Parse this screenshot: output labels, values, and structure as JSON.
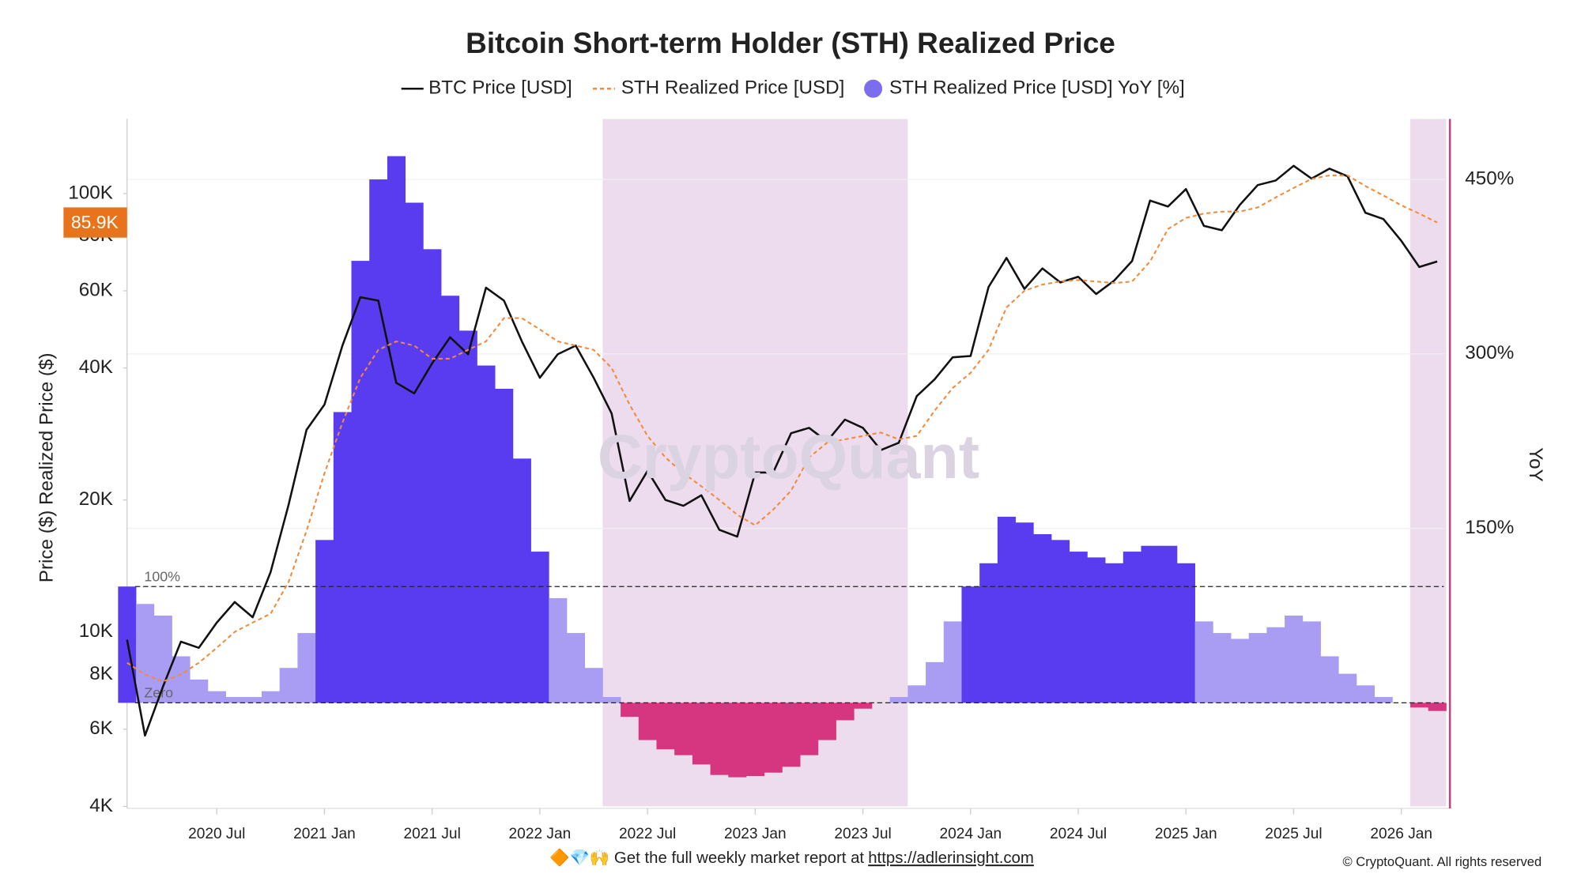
{
  "chart_data": {
    "type": "line",
    "title": "Bitcoin Short-term Holder (STH) Realized Price",
    "y_label": "Price ($) Realized Price ($)",
    "y2_label": "YoY",
    "watermark": "CryptoQuant",
    "footer": {
      "text": "🔶💎🙌 Get the full weekly market report at",
      "link": "https://adlerinsight.com",
      "copyright": "© CryptoQuant. All rights reserved"
    },
    "log_y": true,
    "grid": true,
    "legend": "top",
    "x": [
      "2020 Feb",
      "2020 Mar",
      "2020 Apr",
      "2020 May",
      "2020 Jun",
      "2020 Jul",
      "2020 Aug",
      "2020 Sep",
      "2020 Oct",
      "2020 Nov",
      "2020 Dec",
      "2021 Jan",
      "2021 Feb",
      "2021 Mar",
      "2021 Apr",
      "2021 May",
      "2021 Jun",
      "2021 Jul",
      "2021 Aug",
      "2021 Sep",
      "2021 Oct",
      "2021 Nov",
      "2021 Dec",
      "2022 Jan",
      "2022 Feb",
      "2022 Mar",
      "2022 Apr",
      "2022 May",
      "2022 Jun",
      "2022 Jul",
      "2022 Aug",
      "2022 Sep",
      "2022 Oct",
      "2022 Nov",
      "2022 Dec",
      "2023 Jan",
      "2023 Feb",
      "2023 Mar",
      "2023 Apr",
      "2023 May",
      "2023 Jun",
      "2023 Jul",
      "2023 Aug",
      "2023 Sep",
      "2023 Oct",
      "2023 Nov",
      "2023 Dec",
      "2024 Jan",
      "2024 Feb",
      "2024 Mar",
      "2024 Apr",
      "2024 May",
      "2024 Jun",
      "2024 Jul",
      "2024 Aug",
      "2024 Sep",
      "2024 Oct",
      "2024 Nov",
      "2024 Dec",
      "2025 Jan",
      "2025 Feb",
      "2025 Mar",
      "2025 Apr",
      "2025 May",
      "2025 Jun",
      "2025 Jul",
      "2025 Aug",
      "2025 Sep",
      "2025 Oct",
      "2025 Nov",
      "2025 Dec",
      "2026 Jan",
      "2026 Feb",
      "2026 Mar"
    ],
    "xticks": [
      "2020 Jul",
      "2021 Jan",
      "2021 Jul",
      "2022 Jan",
      "2022 Jul",
      "2023 Jan",
      "2023 Jul",
      "2024 Jan",
      "2024 Jul",
      "2025 Jan",
      "2025 Jul",
      "2026 Jan"
    ],
    "ylim": [
      4000,
      148000
    ],
    "yticks": [
      {
        "value": 4000,
        "label": "4K"
      },
      {
        "value": 6000,
        "label": "6K"
      },
      {
        "value": 8000,
        "label": "8K"
      },
      {
        "value": 10000,
        "label": "10K"
      },
      {
        "value": 20000,
        "label": "20K"
      },
      {
        "value": 40000,
        "label": "40K"
      },
      {
        "value": 60000,
        "label": "60K"
      },
      {
        "value": 80000,
        "label": "80K"
      },
      {
        "value": 100000,
        "label": "100K"
      }
    ],
    "y2lim": [
      -89,
      502
    ],
    "y2ticks": [
      {
        "value": 150,
        "label": "150%"
      },
      {
        "value": 300,
        "label": "300%"
      },
      {
        "value": 450,
        "label": "450%"
      }
    ],
    "reference_lines": [
      {
        "value": 100,
        "label": "100%",
        "axis": "y2"
      },
      {
        "value": 0,
        "label": "Zero",
        "axis": "y2"
      }
    ],
    "shaded_ranges": [
      {
        "from": "2022 May",
        "to": "2023 Sep",
        "color": "#eddcee"
      },
      {
        "from": "2026 Feb",
        "to": "2026 Mar",
        "color": "#eddcee"
      }
    ],
    "last_value_label": {
      "value": 85900,
      "label": "85.9K",
      "color": "#e8731a"
    },
    "series": [
      {
        "name": "BTC Price [USD]",
        "type": "line",
        "color": "#111111",
        "values": [
          9600,
          5800,
          7500,
          9500,
          9200,
          10500,
          11700,
          10800,
          13700,
          19500,
          28900,
          33000,
          45000,
          58000,
          57000,
          37000,
          35000,
          41000,
          47000,
          43000,
          61000,
          57000,
          46000,
          38000,
          43000,
          45000,
          38000,
          31500,
          19900,
          23300,
          20000,
          19400,
          20500,
          17100,
          16500,
          23100,
          23100,
          28400,
          29200,
          27200,
          30500,
          29200,
          26000,
          27000,
          34500,
          37700,
          42300,
          42600,
          61200,
          71300,
          60600,
          67500,
          62700,
          64600,
          59000,
          63300,
          70200,
          96400,
          93400,
          102400,
          84400,
          82500,
          94200,
          104600,
          107100,
          115700,
          108200,
          114000,
          109500,
          90400,
          87500,
          78000,
          68000,
          70000
        ]
      },
      {
        "name": "STH Realized Price [USD]",
        "type": "line",
        "dashed": true,
        "color": "#f08a3c",
        "values": [
          8500,
          8000,
          7700,
          8000,
          8500,
          9200,
          10000,
          10500,
          11000,
          13000,
          17000,
          23000,
          30000,
          38000,
          44000,
          46000,
          45000,
          42000,
          42000,
          44000,
          46000,
          52000,
          52000,
          49000,
          46000,
          45000,
          44000,
          40000,
          33000,
          28000,
          25000,
          23000,
          21500,
          20000,
          18500,
          17500,
          19000,
          21000,
          25000,
          27000,
          27500,
          28000,
          28500,
          27500,
          28000,
          32000,
          36000,
          39000,
          44000,
          55000,
          60000,
          62000,
          63000,
          63500,
          63000,
          62500,
          63000,
          70000,
          83000,
          88000,
          90000,
          91000,
          91000,
          93000,
          98000,
          103000,
          108000,
          110000,
          110000,
          104000,
          99000,
          94000,
          90000,
          85900
        ]
      },
      {
        "name": "STH Realized Price [USD] YoY [%]",
        "type": "bar",
        "axis": "y2",
        "color": "#7c6cf0",
        "bar_colors": {
          "above": "#5a3cf0",
          "between": "#a99cf3",
          "below": "#d6367f"
        },
        "values": [
          100,
          85,
          75,
          40,
          20,
          10,
          5,
          5,
          10,
          30,
          60,
          140,
          250,
          380,
          450,
          470,
          430,
          390,
          350,
          320,
          290,
          270,
          210,
          130,
          90,
          60,
          30,
          5,
          -12,
          -32,
          -40,
          -45,
          -53,
          -62,
          -64,
          -63,
          -60,
          -55,
          -45,
          -32,
          -15,
          -5,
          0,
          5,
          15,
          35,
          70,
          100,
          120,
          160,
          155,
          145,
          140,
          130,
          125,
          120,
          130,
          135,
          135,
          120,
          70,
          60,
          55,
          60,
          65,
          75,
          70,
          40,
          25,
          15,
          5,
          0,
          -4,
          -7
        ]
      }
    ]
  }
}
